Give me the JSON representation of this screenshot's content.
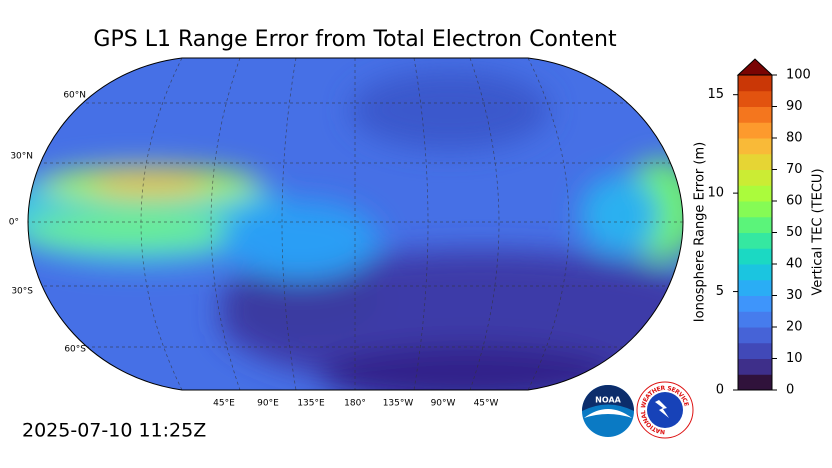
{
  "title": "GPS L1 Range Error from Total Electron Content",
  "timestamp": "2025-07-10 11:25Z",
  "map": {
    "lat_labels": [
      "60°N",
      "30°N",
      "0°",
      "30°S",
      "60°S"
    ],
    "lon_labels": [
      "45°E",
      "90°E",
      "135°E",
      "180°",
      "135°W",
      "90°W",
      "45°W"
    ]
  },
  "colorbar": {
    "left_label": "Ionosphere Range Error (m)",
    "right_label": "Vertical TEC (TECU)",
    "left_lim": [
      0,
      16
    ],
    "left_ticks": [
      0,
      5,
      10,
      15
    ],
    "right_lim": [
      0,
      100
    ],
    "right_ticks": [
      0,
      10,
      20,
      30,
      40,
      50,
      60,
      70,
      80,
      90,
      100
    ],
    "colors": [
      "#30123b",
      "#3e2f8a",
      "#4149b8",
      "#4663d7",
      "#467ced",
      "#3e95fb",
      "#2aadf5",
      "#1bc5e0",
      "#1bd9c3",
      "#35e8a1",
      "#5bf47a",
      "#85fb55",
      "#abfb3c",
      "#cbec34",
      "#e6d534",
      "#f9ba38",
      "#fd9a2d",
      "#f4761e",
      "#e2530f",
      "#ca3706"
    ],
    "extend_color": "#7a0403"
  },
  "logos": {
    "noaa": "NOAA",
    "nws": "NATIONAL WEATHER SERVICE"
  }
}
